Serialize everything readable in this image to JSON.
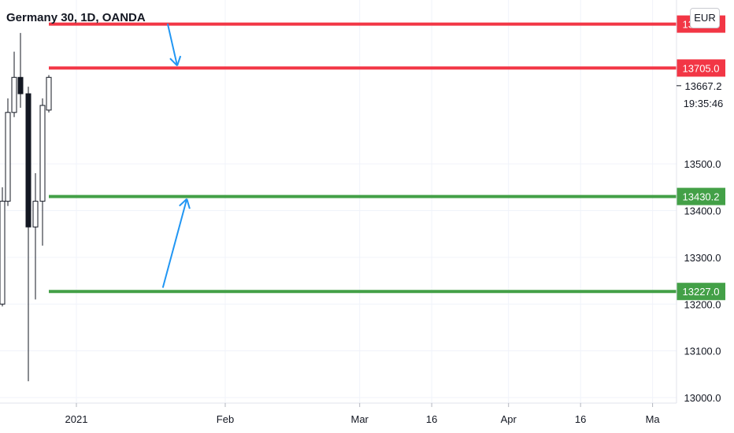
{
  "header": {
    "symbol_title": "Germany 30, 1D, OANDA"
  },
  "currency_label": "EUR",
  "chart_data": {
    "type": "candlestick",
    "title": "Germany 30, 1D, OANDA",
    "ylim": [
      13000.0,
      13850.0
    ],
    "y_ticks": [
      "13500.0",
      "13400.0",
      "13300.0",
      "13200.0",
      "13100.0",
      "13000.0"
    ],
    "y_tick_values": [
      13500,
      13400,
      13300,
      13200,
      13100,
      13000
    ],
    "x_ticks": [
      "2021",
      "Feb",
      "Mar",
      "16",
      "Apr",
      "16",
      "Ma"
    ],
    "x_tick_positions": [
      "2021-01-01",
      "2021-02-01",
      "2021-03-01",
      "2021-03-16",
      "2021-04-01",
      "2021-04-16",
      "2021-05-01"
    ],
    "last_price": {
      "value": "13667.2",
      "countdown": "19:35:46"
    },
    "levels": [
      {
        "value": 13799.0,
        "label": "13799.0",
        "color": "#f23645"
      },
      {
        "value": 13705.0,
        "label": "13705.0",
        "color": "#f23645"
      },
      {
        "value": 13430.2,
        "label": "13430.2",
        "color": "#43a047"
      },
      {
        "value": 13227.0,
        "label": "13227.0",
        "color": "#43a047"
      }
    ],
    "candles": [
      {
        "date": "2020-12-21",
        "open": 13200,
        "high": 13450,
        "low": 13195,
        "close": 13420
      },
      {
        "date": "2020-12-22",
        "open": 13420,
        "high": 13640,
        "low": 13410,
        "close": 13610
      },
      {
        "date": "2020-12-23",
        "open": 13610,
        "high": 13740,
        "low": 13600,
        "close": 13685
      },
      {
        "date": "2020-12-28",
        "open": 13685,
        "high": 13780,
        "low": 13620,
        "close": 13650
      },
      {
        "date": "2020-12-29",
        "open": 13650,
        "high": 13665,
        "low": 13035,
        "close": 13365
      },
      {
        "date": "2020-12-30",
        "open": 13365,
        "high": 13480,
        "low": 13210,
        "close": 13420
      },
      {
        "date": "2021-01-04",
        "open": 13420,
        "high": 13640,
        "low": 13325,
        "close": 13625
      },
      {
        "date": "2021-01-05",
        "open": 13615,
        "high": 13690,
        "low": 13610,
        "close": 13685
      }
    ],
    "annotations": [
      {
        "type": "arrow",
        "color": "#2196f3",
        "from": {
          "date": "2021-01-20",
          "value": 13800
        },
        "to": {
          "date": "2021-01-22",
          "value": 13710
        }
      },
      {
        "type": "arrow",
        "color": "#2196f3",
        "from": {
          "date": "2021-01-19",
          "value": 13235
        },
        "to": {
          "date": "2021-01-24",
          "value": 13425
        }
      }
    ]
  }
}
